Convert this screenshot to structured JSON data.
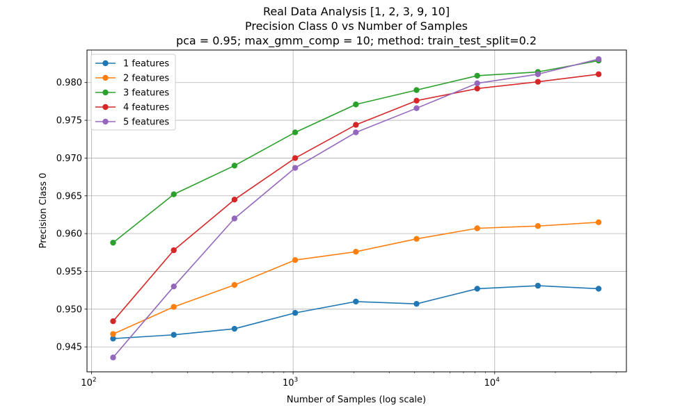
{
  "chart_data": {
    "type": "line",
    "title_lines": [
      "Real Data Analysis [1, 2, 3, 9, 10]",
      "Precision Class 0 vs Number of Samples",
      "pca = 0.95; max_gmm_comp = 10; method: train_test_split=0.2"
    ],
    "xlabel": "Number of Samples (log scale)",
    "ylabel": "Precision Class 0",
    "xscale": "log",
    "xlim": [
      95,
      45000
    ],
    "ylim": [
      0.9417,
      0.9843
    ],
    "grid": true,
    "legend_position": "top-left",
    "x": [
      128,
      256,
      512,
      1024,
      2048,
      4096,
      8192,
      16384,
      32768
    ],
    "x_major_ticks": [
      {
        "value": 100,
        "base": "10",
        "exp": "2"
      },
      {
        "value": 1000,
        "base": "10",
        "exp": "3"
      },
      {
        "value": 10000,
        "base": "10",
        "exp": "4"
      }
    ],
    "y_ticks": [
      "0.945",
      "0.950",
      "0.955",
      "0.960",
      "0.965",
      "0.970",
      "0.975",
      "0.980"
    ],
    "series": [
      {
        "name": "1 features",
        "color": "#1f77b4",
        "values": [
          0.9461,
          0.9466,
          0.9474,
          0.9495,
          0.951,
          0.9507,
          0.9527,
          0.9531,
          0.9527
        ]
      },
      {
        "name": "2 features",
        "color": "#ff7f0e",
        "values": [
          0.9467,
          0.9503,
          0.9532,
          0.9565,
          0.9576,
          0.9593,
          0.9607,
          0.961,
          0.9615
        ]
      },
      {
        "name": "3 features",
        "color": "#2ca02c",
        "values": [
          0.9588,
          0.9652,
          0.969,
          0.9734,
          0.9771,
          0.979,
          0.9809,
          0.9814,
          0.9829
        ]
      },
      {
        "name": "4 features",
        "color": "#d62728",
        "values": [
          0.9484,
          0.9578,
          0.9645,
          0.97,
          0.9744,
          0.9776,
          0.9792,
          0.9801,
          0.9811
        ]
      },
      {
        "name": "5 features",
        "color": "#9467bd",
        "values": [
          0.9436,
          0.953,
          0.962,
          0.9687,
          0.9734,
          0.9766,
          0.9799,
          0.9811,
          0.9831
        ]
      }
    ]
  }
}
